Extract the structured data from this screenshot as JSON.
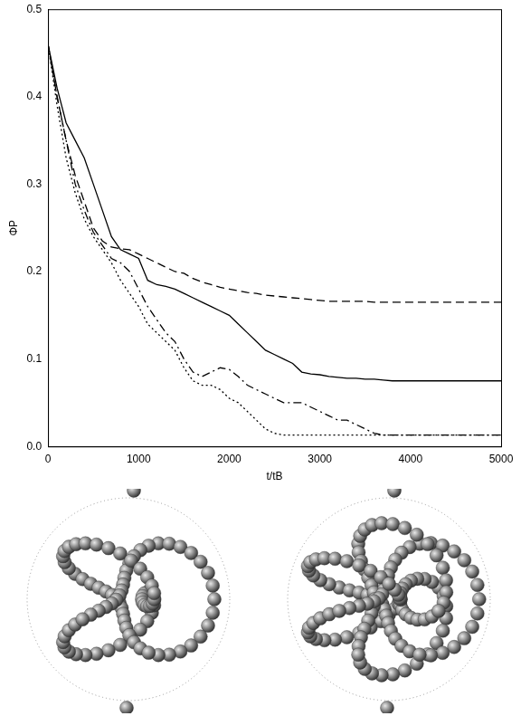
{
  "chart_data": {
    "type": "line",
    "x_label": "t/tB",
    "y_label": "ΦP",
    "x": [
      0,
      100,
      200,
      300,
      400,
      500,
      600,
      700,
      800,
      900,
      1000,
      1100,
      1200,
      1300,
      1400,
      1500,
      1600,
      1700,
      1800,
      1900,
      2000,
      2100,
      2200,
      2300,
      2400,
      2500,
      2600,
      2700,
      2800,
      2900,
      3000,
      3100,
      3200,
      3300,
      3400,
      3500,
      3600,
      3700,
      3800,
      3900,
      4000,
      4100,
      4200,
      4300,
      4400,
      4500,
      4600,
      4700,
      4800,
      4900,
      5000
    ],
    "series": [
      {
        "color": "#000000",
        "line_style": "solid",
        "values": [
          0.46,
          0.41,
          0.37,
          0.35,
          0.33,
          0.3,
          0.27,
          0.24,
          0.225,
          0.22,
          0.215,
          0.19,
          0.185,
          0.183,
          0.18,
          0.175,
          0.17,
          0.165,
          0.16,
          0.155,
          0.15,
          0.14,
          0.13,
          0.12,
          0.11,
          0.105,
          0.1,
          0.095,
          0.085,
          0.083,
          0.082,
          0.08,
          0.079,
          0.078,
          0.078,
          0.077,
          0.077,
          0.076,
          0.075,
          0.075,
          0.075,
          0.075,
          0.075,
          0.075,
          0.075,
          0.075,
          0.075,
          0.075,
          0.075,
          0.075,
          0.075
        ]
      },
      {
        "color": "#000000",
        "line_style": "dashed",
        "values": [
          0.46,
          0.4,
          0.35,
          0.31,
          0.28,
          0.25,
          0.235,
          0.228,
          0.226,
          0.225,
          0.22,
          0.215,
          0.21,
          0.205,
          0.2,
          0.198,
          0.192,
          0.188,
          0.185,
          0.182,
          0.18,
          0.178,
          0.176,
          0.175,
          0.173,
          0.172,
          0.171,
          0.17,
          0.169,
          0.168,
          0.167,
          0.166,
          0.166,
          0.166,
          0.166,
          0.166,
          0.165,
          0.165,
          0.165,
          0.165,
          0.165,
          0.165,
          0.165,
          0.165,
          0.165,
          0.165,
          0.165,
          0.165,
          0.165,
          0.165,
          0.165
        ]
      },
      {
        "color": "#000000",
        "line_style": "dashdot",
        "values": [
          0.46,
          0.4,
          0.35,
          0.3,
          0.27,
          0.245,
          0.23,
          0.215,
          0.21,
          0.2,
          0.18,
          0.16,
          0.145,
          0.13,
          0.12,
          0.1,
          0.085,
          0.08,
          0.085,
          0.09,
          0.088,
          0.08,
          0.07,
          0.065,
          0.06,
          0.055,
          0.05,
          0.05,
          0.05,
          0.045,
          0.04,
          0.035,
          0.03,
          0.03,
          0.025,
          0.02,
          0.015,
          0.013,
          0.013,
          0.013,
          0.013,
          0.013,
          0.013,
          0.013,
          0.013,
          0.013,
          0.013,
          0.013,
          0.013,
          0.013,
          0.013
        ]
      },
      {
        "color": "#000000",
        "line_style": "dotted",
        "values": [
          0.46,
          0.39,
          0.33,
          0.29,
          0.26,
          0.24,
          0.225,
          0.21,
          0.19,
          0.175,
          0.16,
          0.14,
          0.13,
          0.12,
          0.11,
          0.09,
          0.075,
          0.07,
          0.07,
          0.065,
          0.055,
          0.05,
          0.04,
          0.03,
          0.02,
          0.015,
          0.013,
          0.013,
          0.013,
          0.013,
          0.013,
          0.013,
          0.013,
          0.013,
          0.013,
          0.013,
          0.013,
          0.013,
          0.013,
          0.013,
          0.013,
          0.013,
          0.013,
          0.013,
          0.013,
          0.013,
          0.013,
          0.013,
          0.013,
          0.013,
          0.013
        ]
      }
    ],
    "xlim": [
      0,
      5000
    ],
    "xticks": [
      0,
      1000,
      2000,
      3000,
      4000,
      5000
    ],
    "ylim": [
      0,
      0.5
    ],
    "yticks": [
      {
        "value": 0,
        "label": "0.0"
      },
      0.1,
      0.2,
      0.3,
      0.4,
      0.5
    ],
    "grid": false
  }
}
